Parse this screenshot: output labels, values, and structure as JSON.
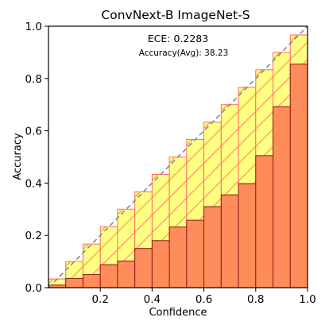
{
  "chart_data": {
    "type": "bar",
    "title": "ConvNext-B  ImageNet-S",
    "xlabel": "Confidence",
    "ylabel": "Accuracy",
    "xlim": [
      0.0,
      1.0
    ],
    "ylim": [
      0.0,
      1.0
    ],
    "x_ticks": [
      "0.2",
      "0.4",
      "0.6",
      "0.8",
      "1.0"
    ],
    "y_ticks": [
      "0.0",
      "0.2",
      "0.4",
      "0.6",
      "0.8",
      "1.0"
    ],
    "annotations": {
      "ece": "ECE: 0.2283",
      "accuracy": "Accuracy(Avg): 38.23"
    },
    "bins": 15,
    "expected": [
      0.0333,
      0.1,
      0.1667,
      0.2333,
      0.3,
      0.3667,
      0.4333,
      0.5,
      0.5667,
      0.6333,
      0.7,
      0.7667,
      0.8333,
      0.9,
      0.9667
    ],
    "accuracy": [
      0.01,
      0.035,
      0.05,
      0.088,
      0.102,
      0.15,
      0.18,
      0.232,
      0.258,
      0.31,
      0.355,
      0.398,
      0.505,
      0.692,
      0.855
    ],
    "colors": {
      "accuracy_fill": "#ff8c5a",
      "accuracy_edge": "#8b1a1a",
      "gap_fill": "#ffff80",
      "gap_edge": "#ff6a6a",
      "hatch": "#ff6a6a",
      "diagonal": "#888888"
    }
  }
}
